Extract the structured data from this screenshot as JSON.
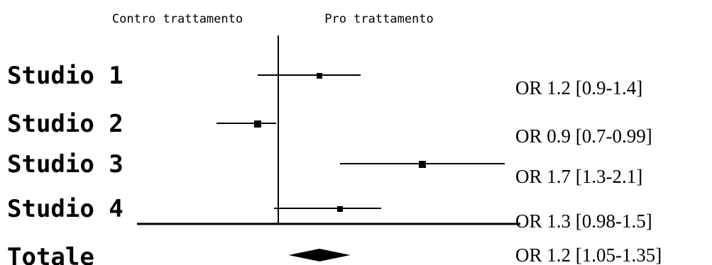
{
  "chart_data": {
    "type": "forest",
    "header_left": "Contro trattamento",
    "header_right": "Pro trattamento",
    "reference_value": 1.0,
    "studies": [
      {
        "label": "Studio 1",
        "estimate": 1.2,
        "low": 0.9,
        "high": 1.4,
        "or_text": "OR 1.2 [0.9-1.4]"
      },
      {
        "label": "Studio 2",
        "estimate": 0.9,
        "low": 0.7,
        "high": 0.99,
        "or_text": "OR 0.9 [0.7-0.99]"
      },
      {
        "label": "Studio 3",
        "estimate": 1.7,
        "low": 1.3,
        "high": 2.1,
        "or_text": "OR 1.7 [1.3-2.1]"
      },
      {
        "label": "Studio 4",
        "estimate": 1.3,
        "low": 0.98,
        "high": 1.5,
        "or_text": "OR 1.3 [0.98-1.5]"
      }
    ],
    "total": {
      "label": "Totale",
      "estimate": 1.2,
      "low": 1.05,
      "high": 1.35,
      "or_text": "OR 1.2 [1.05-1.35]"
    }
  }
}
